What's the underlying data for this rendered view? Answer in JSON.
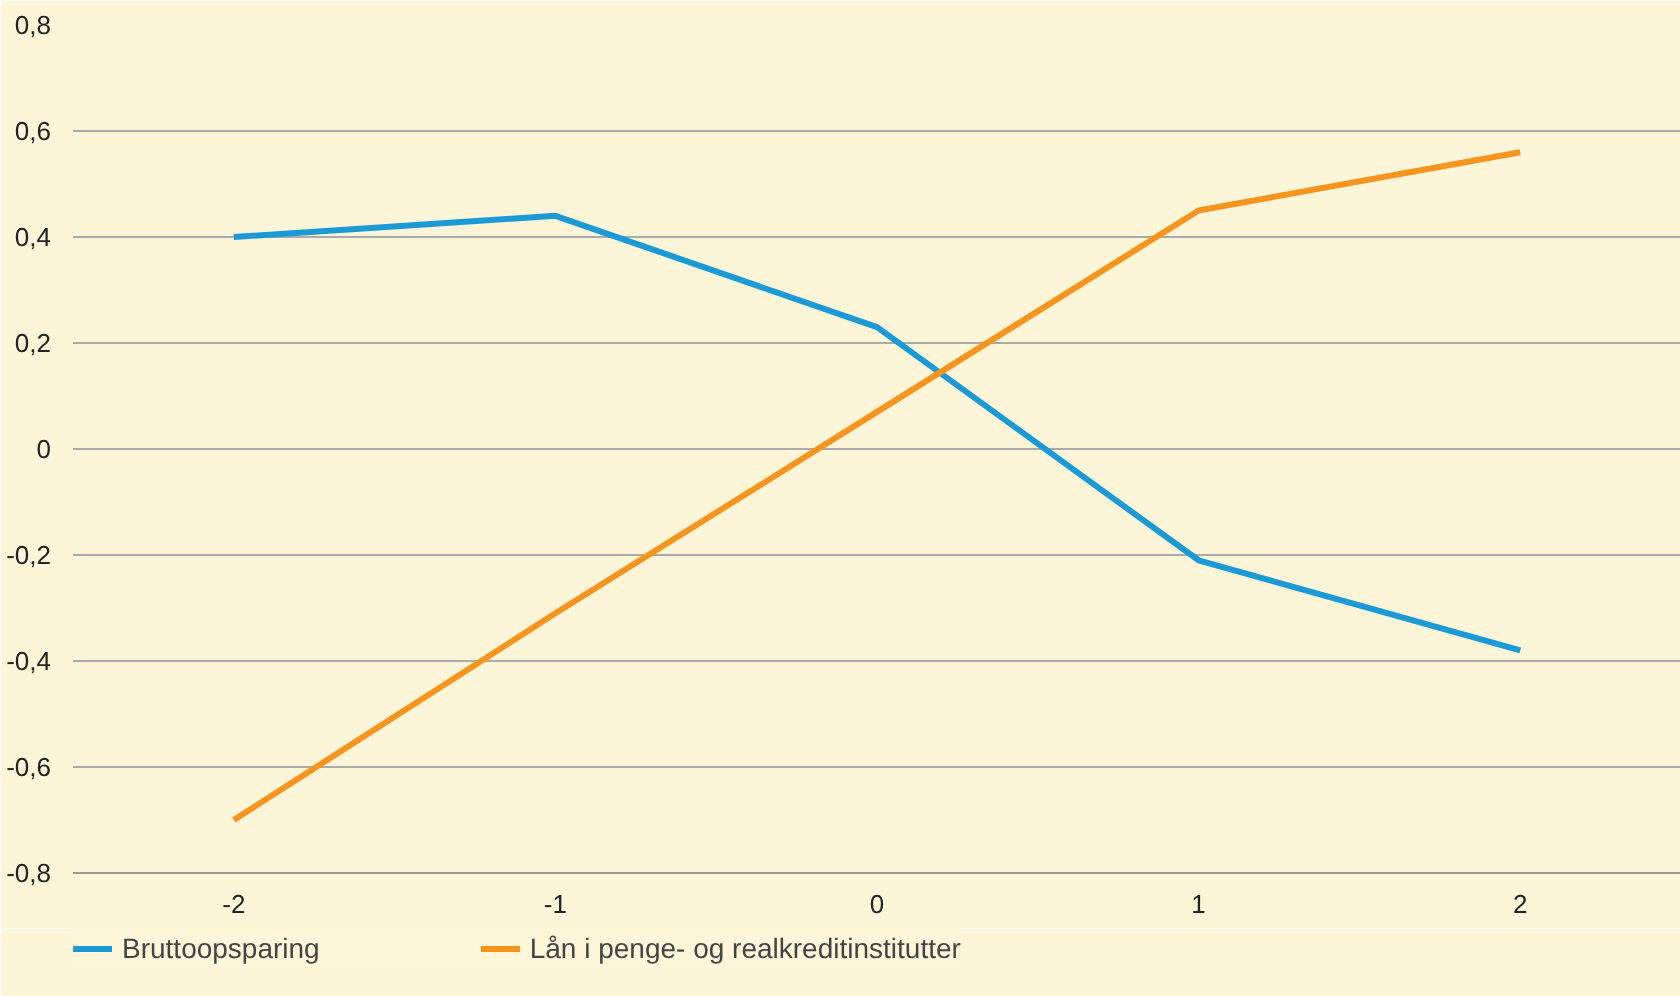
{
  "chart_data": {
    "type": "line",
    "categories": [
      "-2",
      "-1",
      "0",
      "1",
      "2"
    ],
    "series": [
      {
        "name": "Bruttoopsparing",
        "color": "#1b9ad6",
        "values": [
          0.4,
          0.44,
          0.23,
          -0.21,
          -0.38
        ]
      },
      {
        "name": "Lån i penge- og realkreditinstitutter",
        "color": "#f7941d",
        "values": [
          -0.7,
          -0.31,
          0.07,
          0.45,
          0.56
        ]
      }
    ],
    "ylim": [
      -0.8,
      0.8
    ],
    "yticks": [
      {
        "value": -0.8,
        "label": "-0,8"
      },
      {
        "value": -0.6,
        "label": "-0,6"
      },
      {
        "value": -0.4,
        "label": "-0,4"
      },
      {
        "value": -0.2,
        "label": "-0,2"
      },
      0,
      {
        "value": 0.2,
        "label": "0,2"
      },
      {
        "value": 0.4,
        "label": "0,4"
      },
      {
        "value": 0.6,
        "label": "0,6"
      },
      {
        "value": 0.8,
        "label": "0,8"
      }
    ],
    "grid": "y",
    "legend": "bottom",
    "marker": "none",
    "line_style": "solid"
  }
}
